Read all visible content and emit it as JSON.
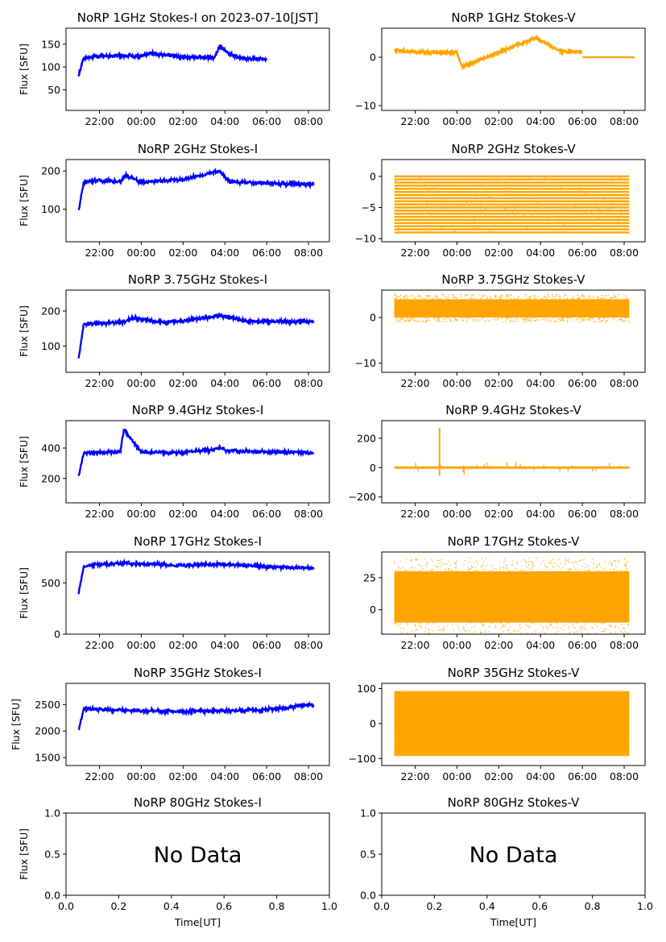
{
  "figure": {
    "xlabel": "Time[UT]",
    "ylabel": "Flux [SFU]",
    "time_ticks": [
      "22:00",
      "00:00",
      "02:00",
      "04:00",
      "06:00",
      "08:00"
    ],
    "frac_ticks": [
      "0.0",
      "0.2",
      "0.4",
      "0.6",
      "0.8",
      "1.0"
    ],
    "colors": {
      "stokes_i": "#0000ff",
      "stokes_v": "#ffa500"
    }
  },
  "chart_data": [
    {
      "type": "scatter",
      "id": "1g-i",
      "title": "NoRP 1GHz Stokes-I on 2023-07-10[JST]",
      "ylabel": "Flux [SFU]",
      "xlim": [
        "20:24",
        "09:00"
      ],
      "ylim": [
        5,
        185
      ],
      "yticks": [
        "50",
        "100",
        "150"
      ],
      "series": [
        {
          "values_approx": {
            "baseline": 122,
            "start": "21:00",
            "end": "06:00",
            "x": [
              "21:00",
              "21:15",
              "22:00",
              "23:00",
              "00:00",
              "00:30",
              "02:00",
              "03:30",
              "03:45",
              "04:15",
              "05:00",
              "06:00"
            ],
            "y": [
              82,
              120,
              124,
              125,
              124,
              130,
              122,
              120,
              145,
              127,
              118,
              117
            ]
          }
        }
      ]
    },
    {
      "type": "scatter",
      "id": "1g-v",
      "title": "NoRP 1GHz Stokes-V",
      "ylabel": "",
      "xlim": [
        "20:24",
        "09:00"
      ],
      "ylim": [
        -11,
        6
      ],
      "yticks": [
        "0",
        "−10"
      ],
      "series": [
        {
          "values_approx": {
            "baseline": 1,
            "start": "21:00",
            "end": "06:00",
            "tail_value": 0,
            "tail_end": "08:30",
            "x": [
              "21:00",
              "22:00",
              "23:00",
              "00:00",
              "00:15",
              "02:00",
              "03:45",
              "05:00",
              "06:00"
            ],
            "y": [
              1.5,
              1.0,
              1.0,
              1.0,
              -2.0,
              1.0,
              4.0,
              1.2,
              1.0
            ]
          }
        }
      ]
    },
    {
      "type": "scatter",
      "id": "2g-i",
      "title": "NoRP 2GHz Stokes-I",
      "ylabel": "Flux [SFU]",
      "xlim": [
        "20:24",
        "09:00"
      ],
      "ylim": [
        15,
        230
      ],
      "yticks": [
        "100",
        "200"
      ],
      "series": [
        {
          "values_approx": {
            "start": "21:00",
            "end": "08:15",
            "x": [
              "21:00",
              "21:15",
              "22:00",
              "23:00",
              "23:15",
              "00:00",
              "02:00",
              "03:45",
              "04:15",
              "06:00",
              "08:15"
            ],
            "y": [
              95,
              172,
              175,
              172,
              190,
              170,
              178,
              200,
              172,
              168,
              165
            ]
          }
        }
      ]
    },
    {
      "type": "scatter",
      "id": "2g-v",
      "title": "NoRP 2GHz Stokes-V",
      "ylabel": "",
      "xlim": [
        "20:24",
        "09:00"
      ],
      "ylim": [
        -10.5,
        2.7
      ],
      "yticks": [
        "0",
        "−5",
        "−10"
      ],
      "series": [
        {
          "values_approx": {
            "quantized_levels_min": -9,
            "quantized_levels_max": 0,
            "start": "21:00",
            "end": "08:15"
          }
        }
      ]
    },
    {
      "type": "scatter",
      "id": "375g-i",
      "title": "NoRP 3.75GHz Stokes-I",
      "ylabel": "Flux [SFU]",
      "xlim": [
        "20:24",
        "09:00"
      ],
      "ylim": [
        25,
        260
      ],
      "yticks": [
        "100",
        "200"
      ],
      "series": [
        {
          "values_approx": {
            "start": "21:00",
            "end": "08:15",
            "x": [
              "21:00",
              "21:15",
              "22:00",
              "23:00",
              "23:45",
              "01:00",
              "02:00",
              "03:45",
              "05:00",
              "06:00",
              "08:15"
            ],
            "y": [
              65,
              162,
              165,
              168,
              180,
              168,
              172,
              188,
              172,
              170,
              170
            ]
          }
        }
      ]
    },
    {
      "type": "scatter",
      "id": "375g-v",
      "title": "NoRP 3.75GHz Stokes-V",
      "ylabel": "",
      "xlim": [
        "20:24",
        "09:00"
      ],
      "ylim": [
        -12,
        6
      ],
      "yticks": [
        "0",
        "−10"
      ],
      "series": [
        {
          "values_approx": {
            "band_min": 0,
            "band_max": 4,
            "start": "21:00",
            "end": "08:15"
          }
        }
      ]
    },
    {
      "type": "scatter",
      "id": "94g-i",
      "title": "NoRP 9.4GHz Stokes-I",
      "ylabel": "Flux [SFU]",
      "xlim": [
        "20:24",
        "09:00"
      ],
      "ylim": [
        40,
        580
      ],
      "yticks": [
        "200",
        "400"
      ],
      "series": [
        {
          "values_approx": {
            "start": "21:00",
            "end": "08:15",
            "x": [
              "21:00",
              "21:15",
              "22:00",
              "23:00",
              "23:10",
              "00:00",
              "02:00",
              "03:45",
              "04:15",
              "06:00",
              "08:15"
            ],
            "y": [
              210,
              370,
              372,
              375,
              520,
              372,
              370,
              395,
              380,
              375,
              370
            ]
          }
        }
      ]
    },
    {
      "type": "scatter",
      "id": "94g-v",
      "title": "NoRP 9.4GHz Stokes-V",
      "ylabel": "",
      "xlim": [
        "20:24",
        "09:00"
      ],
      "ylim": [
        -240,
        320
      ],
      "yticks": [
        "200",
        "0",
        "−200"
      ],
      "series": [
        {
          "values_approx": {
            "baseline": 0,
            "start": "21:00",
            "end": "08:15",
            "spike_at": "23:10",
            "spike_max": 270
          }
        }
      ]
    },
    {
      "type": "scatter",
      "id": "17g-i",
      "title": "NoRP 17GHz Stokes-I",
      "ylabel": "Flux [SFU]",
      "xlim": [
        "20:24",
        "09:00"
      ],
      "ylim": [
        0,
        800
      ],
      "yticks": [
        "500",
        "0"
      ],
      "series": [
        {
          "values_approx": {
            "start": "21:00",
            "end": "08:15",
            "x": [
              "21:00",
              "21:15",
              "22:00",
              "23:00",
              "00:00",
              "02:00",
              "04:00",
              "06:00",
              "07:00",
              "08:15"
            ],
            "y": [
              400,
              660,
              680,
              690,
              685,
              670,
              680,
              660,
              650,
              640
            ]
          }
        }
      ]
    },
    {
      "type": "scatter",
      "id": "17g-v",
      "title": "NoRP 17GHz Stokes-V",
      "ylabel": "",
      "xlim": [
        "20:24",
        "09:00"
      ],
      "ylim": [
        -19,
        45
      ],
      "yticks": [
        "25",
        "0"
      ],
      "series": [
        {
          "values_approx": {
            "band_min": -10,
            "band_max": 30,
            "start": "21:00",
            "end": "08:15"
          }
        }
      ]
    },
    {
      "type": "scatter",
      "id": "35g-i",
      "title": "NoRP 35GHz Stokes-I",
      "ylabel": "Flux [SFU]",
      "xlim": [
        "20:24",
        "09:00"
      ],
      "ylim": [
        1350,
        2900
      ],
      "yticks": [
        "2500",
        "2000",
        "1500"
      ],
      "series": [
        {
          "values_approx": {
            "start": "21:00",
            "end": "08:15",
            "x": [
              "21:00",
              "21:15",
              "22:00",
              "00:00",
              "02:00",
              "04:00",
              "06:00",
              "07:00",
              "08:00",
              "08:15"
            ],
            "y": [
              2030,
              2420,
              2410,
              2380,
              2370,
              2380,
              2400,
              2440,
              2500,
              2470
            ]
          }
        }
      ]
    },
    {
      "type": "scatter",
      "id": "35g-v",
      "title": "NoRP 35GHz Stokes-V",
      "ylabel": "",
      "xlim": [
        "20:24",
        "09:00"
      ],
      "ylim": [
        -120,
        115
      ],
      "yticks": [
        "100",
        "0",
        "−100"
      ],
      "series": [
        {
          "values_approx": {
            "quantized_levels_min": -90,
            "quantized_levels_max": 90,
            "start": "21:00",
            "end": "08:15"
          }
        }
      ]
    },
    {
      "type": "scatter",
      "id": "80g-i",
      "title": "NoRP 80GHz Stokes-I",
      "ylabel": "Flux [SFU]",
      "xlabel": "Time[UT]",
      "xlim": [
        0,
        1
      ],
      "ylim": [
        0,
        1
      ],
      "yticks": [
        "1.0",
        "0.5",
        "0.0"
      ],
      "annotation": "No Data",
      "series": []
    },
    {
      "type": "scatter",
      "id": "80g-v",
      "title": "NoRP 80GHz Stokes-V",
      "ylabel": "",
      "xlabel": "Time[UT]",
      "xlim": [
        0,
        1
      ],
      "ylim": [
        0,
        1
      ],
      "yticks": [
        "1.0",
        "0.5",
        "0.0"
      ],
      "annotation": "No Data",
      "series": []
    }
  ]
}
